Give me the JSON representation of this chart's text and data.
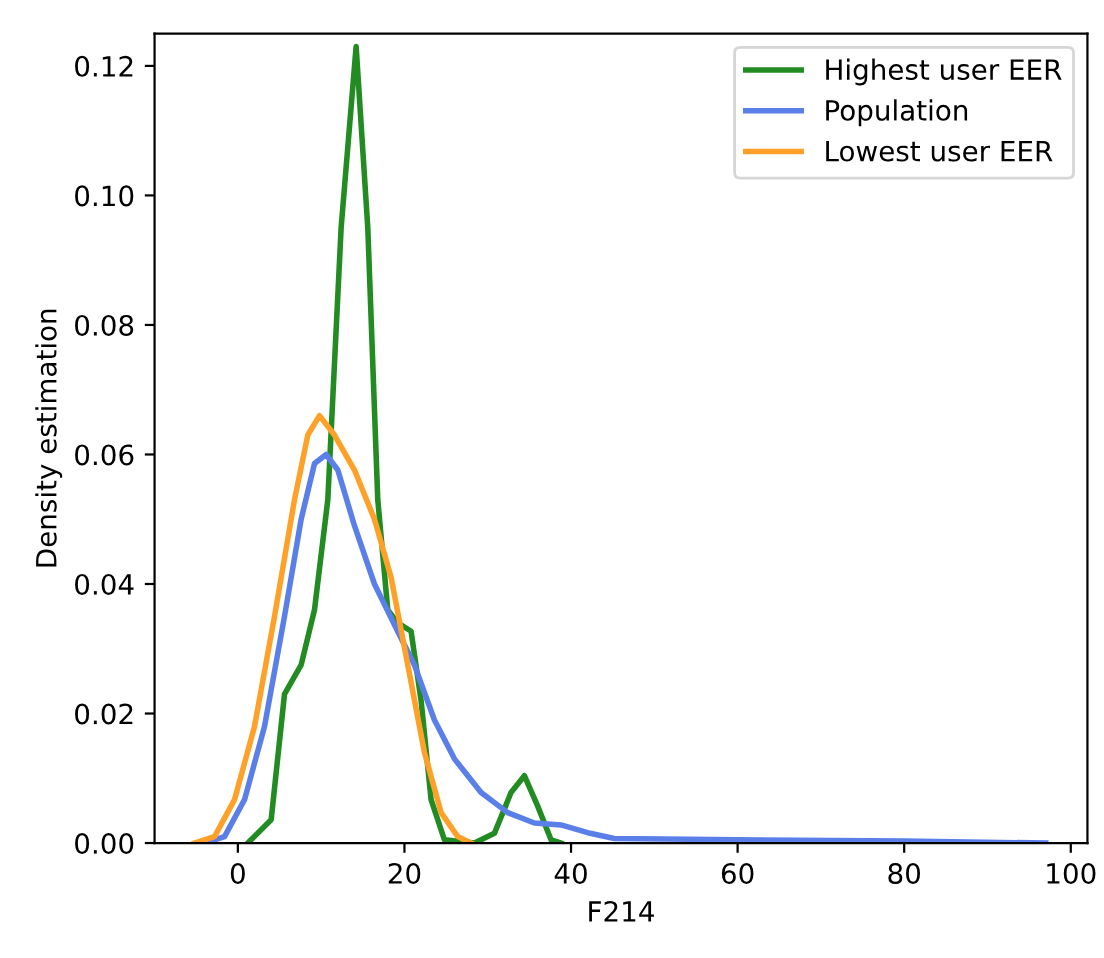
{
  "chart_data": {
    "type": "line",
    "xlabel": "F214",
    "ylabel": "Density estimation",
    "xlim": [
      -10,
      102
    ],
    "ylim": [
      0,
      0.125
    ],
    "xticks": [
      0,
      20,
      40,
      60,
      80,
      100
    ],
    "yticks": [
      {
        "value": 0,
        "label": "0.00"
      },
      {
        "value": 0.02,
        "label": "0.02"
      },
      {
        "value": 0.04,
        "label": "0.04"
      },
      {
        "value": 0.06,
        "label": "0.06"
      },
      {
        "value": 0.08,
        "label": "0.08"
      },
      {
        "value": 0.1,
        "label": "0.10"
      },
      {
        "value": 0.12,
        "label": "0.12"
      }
    ],
    "grid": false,
    "legend": "top right",
    "marker": "none",
    "line_style": "solid",
    "series": [
      {
        "name": "Highest user EER",
        "color": "#228b22",
        "x": [
          1.2,
          4,
          5.6,
          7.6,
          9.2,
          10.8,
          12.4,
          14.2,
          15.6,
          16.8,
          18,
          19.2,
          20.8,
          22,
          23.2,
          24.8,
          28.4,
          30.8,
          32.8,
          34.4,
          36,
          37.6,
          38.8
        ],
        "values": [
          0,
          0.0036,
          0.023,
          0.0275,
          0.036,
          0.053,
          0.095,
          0.123,
          0.095,
          0.053,
          0.036,
          0.034,
          0.0327,
          0.022,
          0.0067,
          0.0005,
          0,
          0.0015,
          0.0078,
          0.0104,
          0.0057,
          0.0005,
          0
        ]
      },
      {
        "name": "Population",
        "color": "#5b7fe8",
        "x": [
          -4,
          -1.6,
          0.8,
          3.2,
          5.6,
          7.6,
          9.2,
          10.6,
          12,
          14,
          16.4,
          18.8,
          21.2,
          23.6,
          26,
          29.2,
          32.4,
          35.6,
          38.8,
          42,
          45.2,
          60,
          80,
          97
        ],
        "values": [
          0,
          0.001,
          0.0067,
          0.018,
          0.035,
          0.05,
          0.0586,
          0.06,
          0.0576,
          0.049,
          0.04,
          0.0337,
          0.0275,
          0.019,
          0.013,
          0.0078,
          0.0047,
          0.0031,
          0.0028,
          0.0016,
          0.0007,
          0.0005,
          0.0003,
          0
        ]
      },
      {
        "name": "Lowest user EER",
        "color": "#ffa128",
        "x": [
          -5.2,
          -2.8,
          -0.4,
          2,
          4.4,
          6.8,
          8.4,
          9.8,
          11.6,
          14,
          16.4,
          18.4,
          20.4,
          22.4,
          24.4,
          26.4,
          28
        ],
        "values": [
          0,
          0.001,
          0.0067,
          0.018,
          0.035,
          0.053,
          0.063,
          0.066,
          0.063,
          0.0576,
          0.05,
          0.041,
          0.0275,
          0.014,
          0.0047,
          0.001,
          0
        ]
      }
    ]
  }
}
